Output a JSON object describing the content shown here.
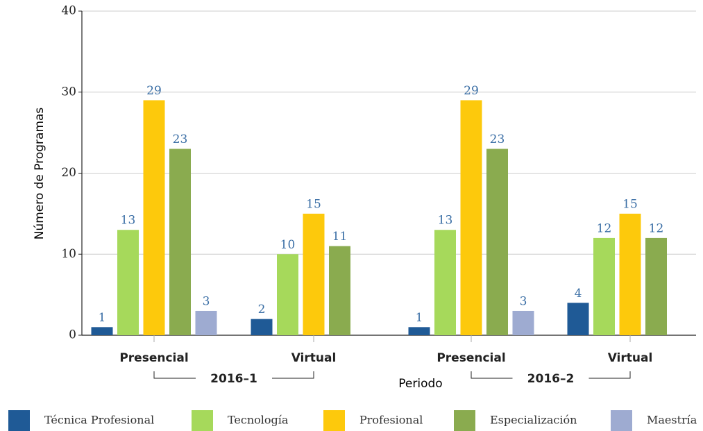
{
  "chart_data": {
    "type": "bar",
    "categories": [
      "Presencial",
      "Virtual",
      "Presencial",
      "Virtual"
    ],
    "groups": [
      "2016–1",
      "2016–2"
    ],
    "xlabel": "Periodo",
    "ylabel": "Número de Programas",
    "series": [
      {
        "name": "Técnica Profesional",
        "color": "#1f5a96",
        "values": [
          1,
          2,
          1,
          4
        ]
      },
      {
        "name": "Tecnología",
        "color": "#a6d95b",
        "values": [
          13,
          10,
          13,
          12
        ]
      },
      {
        "name": "Profesional",
        "color": "#fdc90c",
        "values": [
          29,
          15,
          29,
          15
        ]
      },
      {
        "name": "Especialización",
        "color": "#8aab4f",
        "values": [
          23,
          11,
          23,
          12
        ]
      },
      {
        "name": "Maestría",
        "color": "#9eabd1",
        "values": [
          3,
          null,
          3,
          null
        ]
      }
    ],
    "ylim": [
      0,
      40
    ],
    "yticks": [
      0,
      10,
      20,
      30,
      40
    ],
    "grid": true,
    "legend": "bottom"
  }
}
